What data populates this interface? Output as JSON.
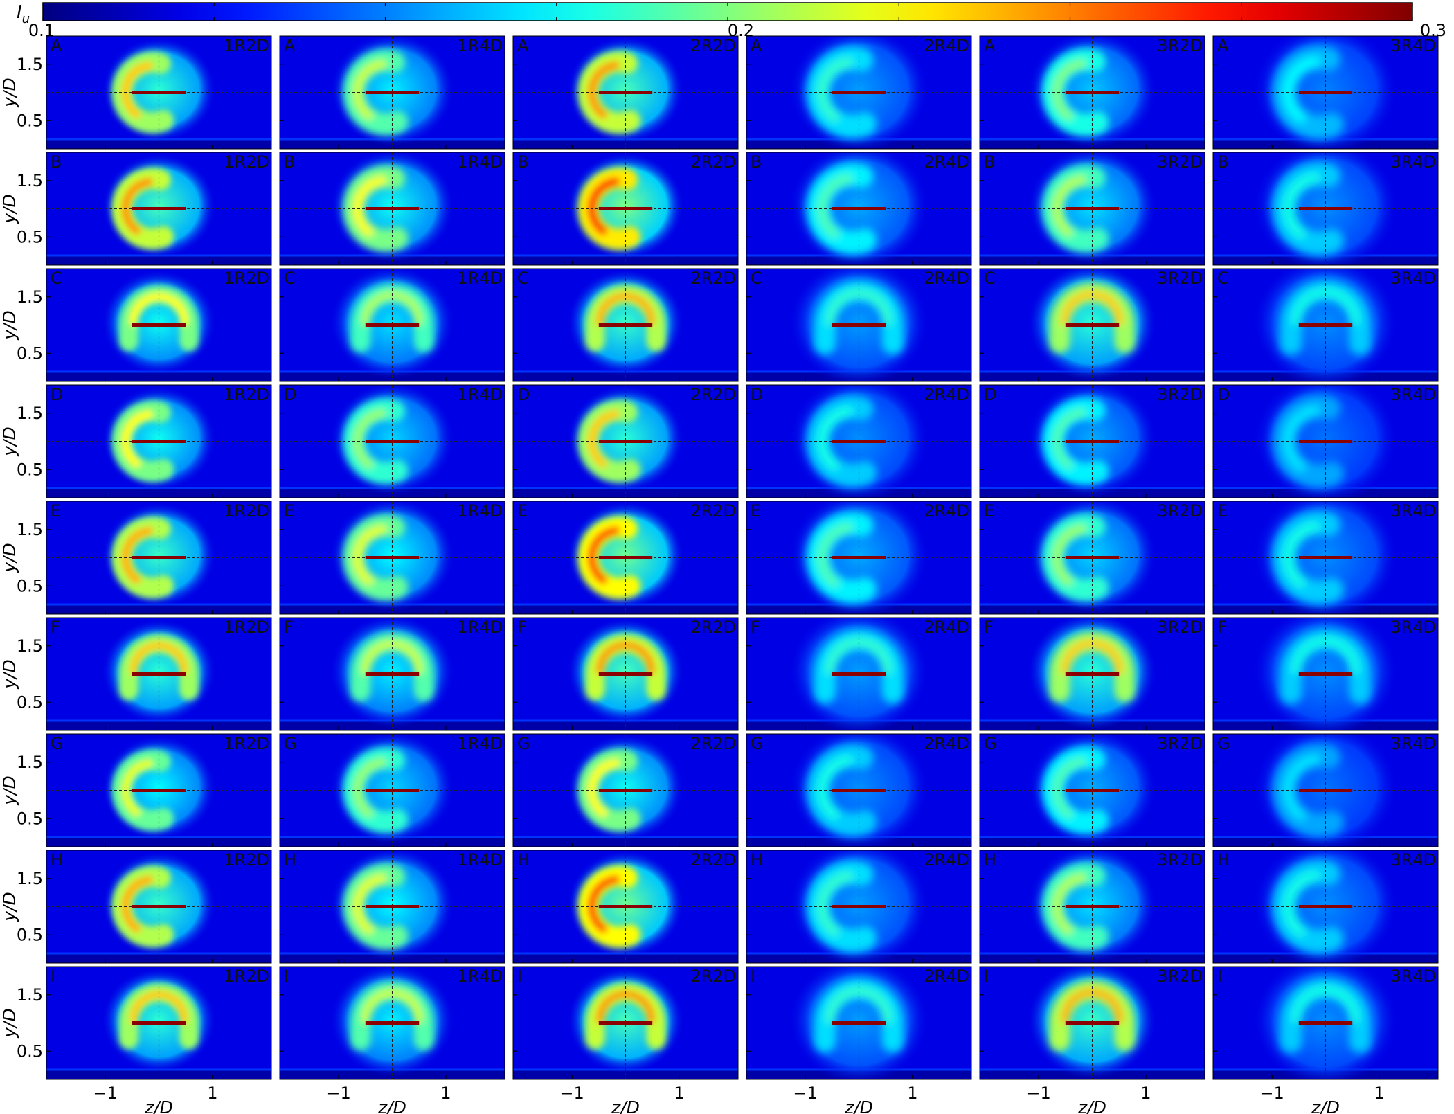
{
  "chart_data": {
    "type": "heatmap",
    "title": "",
    "description_grid": {
      "rows": [
        "A",
        "B",
        "C",
        "D",
        "E",
        "F",
        "G",
        "H",
        "I"
      ],
      "columns": [
        "1R2D",
        "1R4D",
        "2R2D",
        "2R4D",
        "3R2D",
        "3R4D"
      ]
    },
    "colorbar": {
      "label": "I_u",
      "label_main": "I",
      "label_sub": "u",
      "min": 0.1,
      "max": 0.3,
      "tick_labels": [
        "0.1",
        "0.2",
        "0.3"
      ],
      "colormap": "jet"
    },
    "xlabel": "z/D",
    "ylabel": "y/D",
    "xlim": [
      -2.1,
      2.1
    ],
    "ylim": [
      0.0,
      2.0
    ],
    "x_ticks": [
      -1,
      1
    ],
    "x_tick_labels": [
      "−1",
      "1"
    ],
    "y_ticks": [
      0.5,
      1.5
    ],
    "y_tick_labels": [
      "0.5",
      "1.5"
    ],
    "reference_lines": {
      "z": 0.0,
      "y": 1.0
    },
    "rotor_line": {
      "z_from": -0.5,
      "z_to": 0.5,
      "y": 1.0
    },
    "background_Iu": 0.12,
    "peak_Iu": [
      [
        0.235,
        0.215,
        0.245,
        0.185,
        0.2,
        0.175
      ],
      [
        0.245,
        0.225,
        0.265,
        0.19,
        0.21,
        0.18
      ],
      [
        0.225,
        0.21,
        0.24,
        0.185,
        0.235,
        0.18
      ],
      [
        0.225,
        0.205,
        0.235,
        0.18,
        0.19,
        0.17
      ],
      [
        0.24,
        0.22,
        0.26,
        0.19,
        0.205,
        0.18
      ],
      [
        0.235,
        0.215,
        0.245,
        0.185,
        0.235,
        0.18
      ],
      [
        0.22,
        0.205,
        0.225,
        0.18,
        0.19,
        0.17
      ],
      [
        0.24,
        0.22,
        0.26,
        0.185,
        0.21,
        0.18
      ],
      [
        0.235,
        0.215,
        0.245,
        0.185,
        0.24,
        0.18
      ]
    ],
    "wake_shape": [
      "crescent",
      "crescent",
      "horseshoe",
      "crescent",
      "crescent",
      "horseshoe",
      "crescent",
      "crescent",
      "horseshoe"
    ]
  }
}
